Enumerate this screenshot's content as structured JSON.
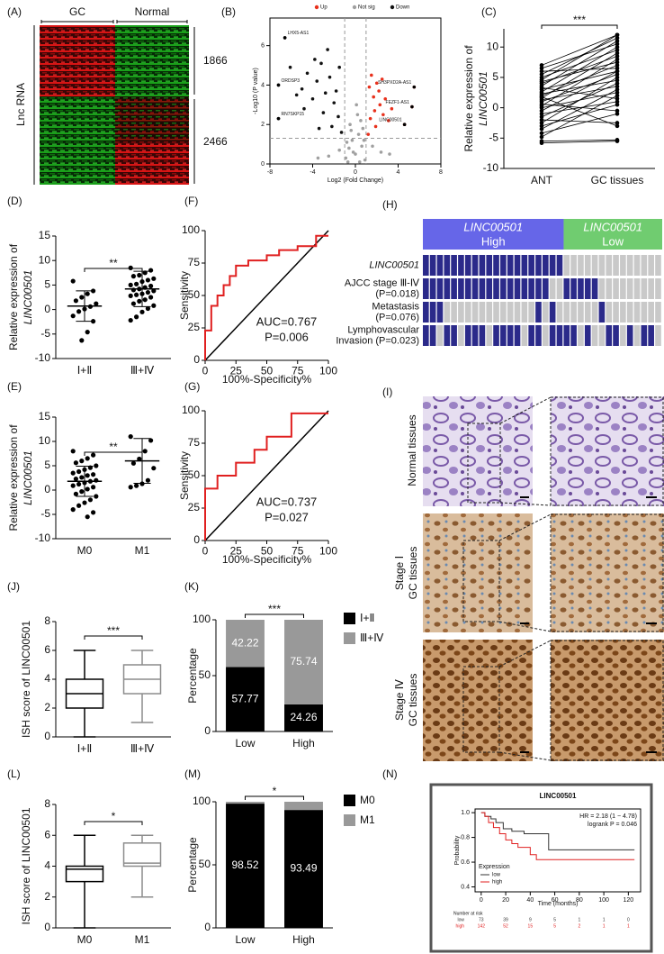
{
  "heatmap_a": {
    "panel": "(A)",
    "columns": [
      "GC",
      "Normal"
    ],
    "row_label": "Lnc RNA",
    "clusters": [
      1866,
      2466
    ]
  },
  "oncoprint_h": {
    "panel": "(H)",
    "groups": [
      {
        "name": "LINC00501",
        "level": "High",
        "color": "#6666e8",
        "size": 20
      },
      {
        "name": "LINC00501",
        "level": "Low",
        "color": "#70cc70",
        "size": 14
      }
    ],
    "on_color": "#2b2a8a",
    "off_color": "#c9c9c9",
    "rows": [
      {
        "label": [
          "LINC00501"
        ],
        "cells": [
          1,
          1,
          1,
          1,
          1,
          1,
          1,
          1,
          1,
          1,
          1,
          1,
          1,
          1,
          1,
          1,
          1,
          1,
          1,
          1,
          0,
          0,
          0,
          0,
          0,
          0,
          0,
          0,
          0,
          0,
          0,
          0,
          0,
          0
        ]
      },
      {
        "label": [
          "AJCC stage Ⅲ-Ⅳ",
          "(P=0.018)"
        ],
        "cells": [
          1,
          1,
          1,
          1,
          1,
          1,
          1,
          1,
          1,
          1,
          1,
          1,
          1,
          1,
          1,
          1,
          1,
          1,
          0,
          0,
          1,
          1,
          1,
          1,
          1,
          0,
          0,
          0,
          0,
          0,
          0,
          0,
          0,
          0
        ]
      },
      {
        "label": [
          "Metastasis",
          "(P=0.076)"
        ],
        "cells": [
          1,
          1,
          1,
          0,
          0,
          0,
          0,
          0,
          0,
          0,
          0,
          0,
          0,
          0,
          0,
          0,
          1,
          0,
          1,
          0,
          0,
          0,
          0,
          0,
          0,
          1,
          0,
          0,
          0,
          0,
          0,
          0,
          0,
          0
        ]
      },
      {
        "label": [
          "Lymphovascular",
          "Invasion (P=0.023)"
        ],
        "cells": [
          1,
          1,
          0,
          1,
          1,
          0,
          1,
          1,
          1,
          0,
          1,
          1,
          1,
          1,
          0,
          1,
          1,
          0,
          1,
          1,
          1,
          1,
          0,
          1,
          0,
          0,
          1,
          1,
          0,
          1,
          0,
          1,
          1,
          0
        ]
      }
    ]
  },
  "images_i": {
    "panel": "(I)",
    "rows": [
      [
        "Normal tissues"
      ],
      [
        "Stage Ⅰ",
        "GC tissues"
      ],
      [
        "Stage Ⅳ",
        "GC tissues"
      ]
    ]
  },
  "chart_data": [
    {
      "panel": "(B)",
      "type": "scatter",
      "xlabel": "Log2 (Fold Change)",
      "ylabel": "-Log10 (P value)",
      "xlim": [
        -8,
        8
      ],
      "ylim": [
        0,
        7.4
      ],
      "xticks": [
        -8,
        -4,
        0,
        4,
        8
      ],
      "yticks": [
        0,
        2,
        4,
        6
      ],
      "thresholds": {
        "x": [
          -1,
          1
        ],
        "y": 1.3
      },
      "series": [
        {
          "name": "Up",
          "color": "#e8301c",
          "x": [
            1.2,
            1.4,
            1.7,
            2,
            2.3,
            2.6,
            1.5,
            1.9,
            2.2,
            2.8,
            3.1,
            1.3,
            1.8,
            2.5,
            3.4,
            4.6,
            5.3,
            5.5
          ],
          "y": [
            1.5,
            2.3,
            3.4,
            4.1,
            3.0,
            2.5,
            4.5,
            1.9,
            3.7,
            3.3,
            2.2,
            3.9,
            2.7,
            4.3,
            2.8,
            2.0,
            2.9,
            3.9
          ]
        },
        {
          "name": "Not sig",
          "color": "#a0a0a0",
          "x": [
            -0.9,
            -0.6,
            -0.3,
            0,
            0.3,
            0.6,
            0.9,
            -0.5,
            0.2,
            0.7,
            -0.8,
            0.4,
            -0.2,
            0.1,
            -1.5,
            1.6,
            -2.5,
            2.4,
            -3.5,
            3.2,
            -0.4,
            0.5,
            -0.7,
            0.8
          ],
          "y": [
            0.3,
            0.8,
            1.2,
            0.5,
            1.5,
            0.9,
            0.2,
            2.0,
            2.5,
            1.8,
            1.1,
            0.1,
            0.6,
            3.0,
            0.7,
            0.9,
            0.4,
            0.6,
            0.3,
            0.5,
            1.7,
            2.2,
            0.1,
            1.2
          ]
        },
        {
          "name": "Down",
          "color": "#111111",
          "x": [
            -1.3,
            -1.6,
            -2,
            -2.4,
            -2.8,
            -3.2,
            -3.6,
            -4,
            -4.5,
            -5,
            -1.5,
            -2.2,
            -3,
            -3.8,
            -4.8,
            -5.5,
            -6.1,
            -2.6,
            -1.8,
            -3.4,
            -6.6,
            -7.2,
            -7.2
          ],
          "y": [
            1.6,
            2.4,
            3.1,
            4.4,
            3.6,
            5.1,
            4.2,
            3.3,
            4.6,
            3.8,
            4.9,
            1.9,
            2.6,
            5.3,
            2.8,
            3.5,
            4.9,
            5.8,
            3.7,
            1.8,
            6.4,
            4.0,
            2.3
          ]
        }
      ],
      "annotations": [
        {
          "text": "LHX5-AS1",
          "x": -6.6,
          "y": 6.4
        },
        {
          "text": "ORDSP3",
          "x": -7.2,
          "y": 4.0
        },
        {
          "text": "RN7SKP15",
          "x": -7.2,
          "y": 2.3
        },
        {
          "text": "SH3PXD2A-AS1",
          "x": 5.5,
          "y": 3.9
        },
        {
          "text": "FEZF1-AS1",
          "x": 5.3,
          "y": 2.9
        },
        {
          "text": "LINC00501",
          "x": 4.6,
          "y": 2.0
        }
      ]
    },
    {
      "panel": "(C)",
      "type": "paired",
      "categories": [
        "ANT",
        "GC tissues"
      ],
      "ylabel": [
        "Relative expression of",
        "LINC00501"
      ],
      "ylim": [
        -10,
        13
      ],
      "yticks": [
        -10,
        -5,
        0,
        5,
        10
      ],
      "significance": "***",
      "pairs": [
        [
          -5.5,
          -5.3
        ],
        [
          -4.8,
          2
        ],
        [
          -4.2,
          -1
        ],
        [
          -3.5,
          3
        ],
        [
          -3,
          0.5
        ],
        [
          -2.5,
          5
        ],
        [
          -2,
          -2.5
        ],
        [
          -1.5,
          4
        ],
        [
          -1,
          1
        ],
        [
          -0.5,
          6
        ],
        [
          0,
          2.5
        ],
        [
          0.3,
          8
        ],
        [
          0.6,
          -0.5
        ],
        [
          1,
          5.5
        ],
        [
          1.3,
          3.5
        ],
        [
          1.6,
          9
        ],
        [
          2,
          7
        ],
        [
          2.3,
          4.5
        ],
        [
          2.6,
          10
        ],
        [
          3,
          6
        ],
        [
          3.3,
          1.5
        ],
        [
          3.6,
          11
        ],
        [
          4,
          8.5
        ],
        [
          4.3,
          7.5
        ],
        [
          4.6,
          12
        ],
        [
          5,
          9.5
        ],
        [
          5.5,
          11.5
        ],
        [
          6,
          6.5
        ],
        [
          6.5,
          10.5
        ],
        [
          7,
          12
        ],
        [
          -5.8,
          -5.5
        ],
        [
          1.8,
          -3
        ]
      ]
    },
    {
      "panel": "(D)",
      "type": "dotplot",
      "categories": [
        "Ⅰ+Ⅱ",
        "Ⅲ+Ⅳ"
      ],
      "ylabel": [
        "Relative expression of",
        "LINC00501"
      ],
      "ylim": [
        -10,
        15
      ],
      "yticks": [
        -10,
        -5,
        0,
        5,
        10,
        15
      ],
      "significance": "**",
      "groups": [
        [
          5.8,
          3.8,
          3.2,
          2.5,
          1.8,
          1.2,
          0.6,
          0.1,
          -0.4,
          -1.3,
          -2.4,
          -4.6,
          -6.3
        ],
        [
          8.5,
          8,
          7.5,
          7,
          6.8,
          6.3,
          6,
          5.7,
          5.2,
          5,
          4.8,
          4.5,
          4.2,
          4,
          3.8,
          3.5,
          3.2,
          3,
          2.8,
          2.5,
          2,
          1.7,
          1.2,
          0.8,
          0.2,
          -0.5,
          -1.5,
          -2.2
        ]
      ],
      "means": [
        0.7,
        4.2
      ],
      "sds": [
        3.1,
        3.6
      ]
    },
    {
      "panel": "(F)",
      "type": "line",
      "color": "#e02020",
      "diagonal": true,
      "x": [
        0,
        0,
        5,
        5,
        10,
        10,
        15,
        15,
        20,
        20,
        25,
        25,
        35,
        35,
        50,
        50,
        60,
        60,
        75,
        75,
        90,
        90,
        100
      ],
      "y": [
        0,
        23,
        23,
        42,
        42,
        50,
        50,
        58,
        58,
        65,
        65,
        73,
        73,
        77,
        77,
        81,
        81,
        85,
        85,
        88,
        88,
        96,
        96
      ],
      "xlim": [
        0,
        100
      ],
      "ylim": [
        0,
        100
      ],
      "xticks": [
        0,
        25,
        50,
        75,
        100
      ],
      "yticks": [
        0,
        25,
        50,
        75,
        100
      ],
      "xlabel": "100%-Specificity%",
      "ylabel": "Sensitivity",
      "annotations": [
        "AUC=0.767",
        "P=0.006"
      ]
    },
    {
      "panel": "(E)",
      "type": "dotplot",
      "categories": [
        "M0",
        "M1"
      ],
      "ylabel": [
        "Relative expression of",
        "LINC00501"
      ],
      "ylim": [
        -10,
        15
      ],
      "yticks": [
        -10,
        -5,
        0,
        5,
        10,
        15
      ],
      "significance": "**",
      "groups": [
        [
          8,
          7.2,
          6.5,
          6,
          5.6,
          5,
          4.6,
          4.2,
          3.8,
          3.5,
          3.2,
          3,
          2.6,
          2.3,
          2,
          1.8,
          1.5,
          1.2,
          0.9,
          0.6,
          0.2,
          -0.3,
          -0.8,
          -1.3,
          -2,
          -2.6,
          -3.2,
          -4,
          -4.6,
          -5.5
        ],
        [
          11,
          10.2,
          8,
          6.4,
          5.5,
          4.5,
          2,
          1.3,
          0.9,
          0.6
        ]
      ],
      "means": [
        1.8,
        6
      ],
      "sds": [
        3.1,
        4.6
      ]
    },
    {
      "panel": "(G)",
      "type": "line",
      "color": "#e02020",
      "diagonal": true,
      "x": [
        0,
        0,
        10,
        10,
        25,
        25,
        40,
        40,
        50,
        50,
        70,
        70,
        100
      ],
      "y": [
        0,
        40,
        40,
        50,
        50,
        60,
        60,
        70,
        70,
        80,
        80,
        98,
        98
      ],
      "xlim": [
        0,
        100
      ],
      "ylim": [
        0,
        100
      ],
      "xticks": [
        0,
        25,
        50,
        75,
        100
      ],
      "yticks": [
        0,
        25,
        50,
        75,
        100
      ],
      "xlabel": "100%-Specificity%",
      "ylabel": "Sensitivity",
      "annotations": [
        "AUC=0.737",
        "P=0.027"
      ]
    },
    {
      "panel": "(J)",
      "type": "box",
      "categories": [
        "Ⅰ+Ⅱ",
        "Ⅲ+Ⅳ"
      ],
      "colors": [
        "#000000",
        "#8c8c8c"
      ],
      "boxes": [
        {
          "min": 0,
          "q1": 2,
          "median": 3,
          "q3": 4,
          "max": 6
        },
        {
          "min": 1,
          "q1": 3,
          "median": 4,
          "q3": 5,
          "max": 6
        }
      ],
      "ylabel": "ISH score of LINC00501",
      "ylim": [
        0,
        8
      ],
      "yticks": [
        0,
        2,
        4,
        6,
        8
      ],
      "significance": "***"
    },
    {
      "panel": "(K)",
      "type": "stacked",
      "categories": [
        "Low",
        "High"
      ],
      "series": [
        {
          "name": "Ⅰ+Ⅱ",
          "color": "#000000",
          "values": [
            57.77,
            24.26
          ],
          "labeled": true
        },
        {
          "name": "Ⅲ+Ⅳ",
          "color": "#999999",
          "values": [
            42.22,
            75.74
          ],
          "labeled": true
        }
      ],
      "ylabel": "Percentage",
      "ylim": [
        0,
        100
      ],
      "yticks": [
        0,
        50,
        100
      ],
      "significance": "***"
    },
    {
      "panel": "(L)",
      "type": "box",
      "categories": [
        "M0",
        "M1"
      ],
      "colors": [
        "#000000",
        "#8c8c8c"
      ],
      "boxes": [
        {
          "min": 0,
          "q1": 3,
          "median": 3.8,
          "q3": 4,
          "max": 6
        },
        {
          "min": 2,
          "q1": 4,
          "median": 4.2,
          "q3": 5.5,
          "max": 6
        }
      ],
      "ylabel": "ISH score of LINC00501",
      "ylim": [
        0,
        8
      ],
      "yticks": [
        0,
        2,
        4,
        6,
        8
      ],
      "significance": "*"
    },
    {
      "panel": "(M)",
      "type": "stacked",
      "categories": [
        "Low",
        "High"
      ],
      "series": [
        {
          "name": "M0",
          "color": "#000000",
          "values": [
            98.52,
            93.49
          ],
          "labeled": true
        },
        {
          "name": "M1",
          "color": "#999999",
          "values": [
            1.48,
            6.51
          ],
          "labeled": false
        }
      ],
      "ylabel": "Percentage",
      "ylim": [
        0,
        100
      ],
      "yticks": [
        0,
        50,
        100
      ],
      "significance": "*"
    },
    {
      "panel": "(N)",
      "type": "km",
      "title": "LINC00501",
      "xlim": [
        -5,
        130
      ],
      "ylim": [
        0.36,
        1.03
      ],
      "xticks": [
        0,
        20,
        40,
        60,
        80,
        100,
        120
      ],
      "yticks": [
        0.4,
        0.6,
        0.8,
        {
          "value": 1,
          "label": "1.0"
        }
      ],
      "xlabel": "Time (months)",
      "ylabel": "Probability",
      "annotations": [
        "HR = 2.18 (1 − 4.78)",
        "logrank P = 0.046"
      ],
      "legend_title": "Expression",
      "risk_title": "Number at risk",
      "series": [
        {
          "name": "low",
          "color": "#333333",
          "x": [
            0,
            3,
            8,
            12,
            18,
            25,
            35,
            55,
            125
          ],
          "y": [
            1,
            0.97,
            0.95,
            0.92,
            0.87,
            0.85,
            0.83,
            0.7,
            0.7
          ],
          "at_risk": [
            73,
            39,
            9,
            5,
            1,
            1,
            0
          ]
        },
        {
          "name": "high",
          "color": "#e02020",
          "x": [
            0,
            3,
            6,
            10,
            15,
            20,
            25,
            30,
            40,
            45,
            125
          ],
          "y": [
            1,
            0.97,
            0.92,
            0.88,
            0.83,
            0.78,
            0.75,
            0.72,
            0.66,
            0.62,
            0.62
          ],
          "at_risk": [
            142,
            52,
            15,
            5,
            2,
            1,
            1
          ]
        }
      ]
    }
  ]
}
